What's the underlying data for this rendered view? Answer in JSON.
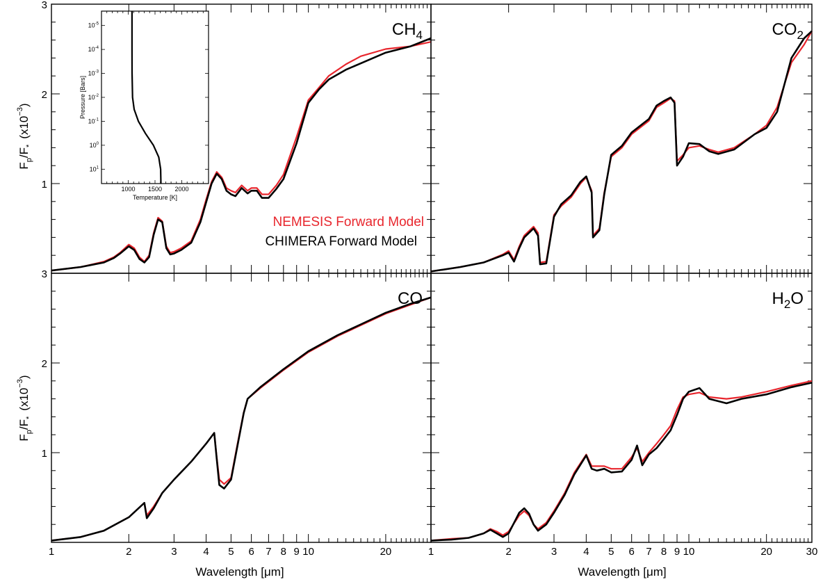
{
  "figure": {
    "xlabel": "Wavelength [μm]",
    "ylabel_main": "F",
    "ylabel_sub_p": "p",
    "ylabel_mid": "/F",
    "ylabel_sub_star": "*",
    "ylabel_scale": "(x10",
    "ylabel_exp": "−3",
    "ylabel_close": ")"
  },
  "legend": {
    "nemesis": "NEMESIS Forward Model",
    "chimera": "CHIMERA Forward Model",
    "nemesis_color": "#e8262d",
    "chimera_color": "#000000"
  },
  "chart_data": [
    {
      "type": "line",
      "panel_label": "CH4",
      "label_main": "CH",
      "label_sub": "4",
      "xscale": "log",
      "xlim": [
        1,
        30
      ],
      "ylim": [
        0,
        3
      ],
      "yticks": [
        "1",
        "2",
        "3"
      ],
      "xticks": [
        "1",
        "2",
        "3",
        "4",
        "5",
        "6",
        "7",
        "8",
        "9",
        "10",
        "20"
      ],
      "x": [
        1.0,
        1.3,
        1.6,
        1.75,
        1.85,
        2.0,
        2.1,
        2.2,
        2.3,
        2.4,
        2.5,
        2.6,
        2.7,
        2.8,
        2.9,
        3.0,
        3.2,
        3.5,
        3.8,
        4.0,
        4.2,
        4.4,
        4.6,
        4.8,
        5.0,
        5.2,
        5.5,
        5.8,
        6.0,
        6.3,
        6.6,
        7.0,
        7.5,
        8.0,
        9.0,
        10.0,
        11.0,
        12.0,
        14.0,
        16.0,
        20.0,
        25.0,
        30.0
      ],
      "series": [
        {
          "name": "NEMESIS Forward Model",
          "color": "#e8262d",
          "values": [
            0.03,
            0.07,
            0.13,
            0.18,
            0.23,
            0.32,
            0.28,
            0.18,
            0.13,
            0.2,
            0.45,
            0.62,
            0.58,
            0.3,
            0.23,
            0.24,
            0.28,
            0.36,
            0.6,
            0.82,
            1.02,
            1.13,
            1.07,
            0.95,
            0.92,
            0.9,
            0.98,
            0.92,
            0.95,
            0.95,
            0.88,
            0.88,
            0.98,
            1.1,
            1.52,
            1.93,
            2.07,
            2.2,
            2.33,
            2.42,
            2.5,
            2.53,
            2.58
          ]
        },
        {
          "name": "CHIMERA Forward Model",
          "color": "#000000",
          "values": [
            0.03,
            0.07,
            0.12,
            0.17,
            0.22,
            0.3,
            0.26,
            0.16,
            0.12,
            0.18,
            0.43,
            0.6,
            0.57,
            0.28,
            0.21,
            0.22,
            0.26,
            0.34,
            0.57,
            0.79,
            1.0,
            1.11,
            1.05,
            0.92,
            0.88,
            0.86,
            0.95,
            0.89,
            0.92,
            0.92,
            0.84,
            0.84,
            0.94,
            1.05,
            1.45,
            1.9,
            2.05,
            2.16,
            2.27,
            2.34,
            2.46,
            2.53,
            2.62
          ]
        }
      ],
      "inset": {
        "type": "line",
        "xlabel": "Temperature [K]",
        "ylabel": "Pressure [Bars]",
        "xticks": [
          "1000",
          "1500",
          "2000"
        ],
        "xlim": [
          500,
          2500
        ],
        "ytick_exponents": [
          "-5",
          "-4",
          "-3",
          "-2",
          "-1",
          "0",
          "1"
        ],
        "yticks_base": "10",
        "temperature": [
          1070,
          1070,
          1072,
          1080,
          1110,
          1190,
          1320,
          1470,
          1570,
          1605,
          1610
        ],
        "log10_pressure": [
          -5.6,
          -4.0,
          -3.0,
          -2.0,
          -1.5,
          -1.0,
          -0.5,
          0.0,
          0.5,
          1.0,
          1.6
        ]
      }
    },
    {
      "type": "line",
      "panel_label": "CO2",
      "label_main": "CO",
      "label_sub": "2",
      "xscale": "log",
      "xlim": [
        1,
        30
      ],
      "ylim": [
        0,
        3
      ],
      "yticks": [
        "1",
        "2",
        "3"
      ],
      "xticks": [
        "1",
        "2",
        "3",
        "4",
        "5",
        "6",
        "7",
        "8",
        "9",
        "10",
        "20",
        "30"
      ],
      "x": [
        1.0,
        1.3,
        1.6,
        1.9,
        2.0,
        2.1,
        2.2,
        2.3,
        2.5,
        2.6,
        2.65,
        2.8,
        3.0,
        3.2,
        3.5,
        3.8,
        4.0,
        4.2,
        4.25,
        4.5,
        4.7,
        5.0,
        5.5,
        6.0,
        7.0,
        7.5,
        8.0,
        8.5,
        8.8,
        9.0,
        9.5,
        10.0,
        11.0,
        12.0,
        13.0,
        15.0,
        18.0,
        20.0,
        22.0,
        25.0,
        28.0,
        30.0
      ],
      "series": [
        {
          "name": "NEMESIS Forward Model",
          "color": "#e8262d",
          "values": [
            0.02,
            0.07,
            0.12,
            0.21,
            0.25,
            0.15,
            0.3,
            0.42,
            0.52,
            0.45,
            0.12,
            0.13,
            0.65,
            0.75,
            0.85,
            1.0,
            1.07,
            0.92,
            0.42,
            0.5,
            0.9,
            1.3,
            1.4,
            1.55,
            1.7,
            1.85,
            1.9,
            1.95,
            1.92,
            1.25,
            1.32,
            1.4,
            1.42,
            1.38,
            1.35,
            1.4,
            1.55,
            1.65,
            1.85,
            2.35,
            2.55,
            2.7
          ]
        },
        {
          "name": "CHIMERA Forward Model",
          "color": "#000000",
          "values": [
            0.02,
            0.07,
            0.12,
            0.2,
            0.23,
            0.13,
            0.28,
            0.4,
            0.5,
            0.42,
            0.1,
            0.11,
            0.63,
            0.77,
            0.87,
            1.02,
            1.08,
            0.9,
            0.4,
            0.48,
            0.88,
            1.32,
            1.42,
            1.57,
            1.72,
            1.87,
            1.92,
            1.96,
            1.9,
            1.2,
            1.3,
            1.45,
            1.44,
            1.36,
            1.33,
            1.38,
            1.55,
            1.62,
            1.8,
            2.4,
            2.62,
            2.7
          ]
        }
      ]
    },
    {
      "type": "line",
      "panel_label": "CO",
      "label_main": "CO",
      "label_sub": "",
      "xscale": "log",
      "xlim": [
        1,
        30
      ],
      "ylim": [
        0,
        3
      ],
      "yticks": [
        "1",
        "2",
        "3"
      ],
      "xticks": [
        "1",
        "2",
        "3",
        "4",
        "5",
        "6",
        "7",
        "8",
        "9",
        "10",
        "20"
      ],
      "x": [
        1.0,
        1.3,
        1.6,
        2.0,
        2.3,
        2.35,
        2.5,
        2.7,
        3.0,
        3.5,
        4.0,
        4.3,
        4.4,
        4.5,
        4.7,
        5.0,
        5.3,
        5.6,
        5.8,
        6.5,
        8.0,
        10.0,
        13.0,
        16.0,
        20.0,
        25.0,
        30.0
      ],
      "series": [
        {
          "name": "NEMESIS Forward Model",
          "color": "#e8262d",
          "values": [
            0.02,
            0.06,
            0.13,
            0.28,
            0.44,
            0.3,
            0.4,
            0.55,
            0.7,
            0.9,
            1.1,
            1.22,
            0.95,
            0.7,
            0.65,
            0.72,
            1.1,
            1.45,
            1.6,
            1.72,
            1.92,
            2.12,
            2.3,
            2.42,
            2.55,
            2.65,
            2.73
          ]
        },
        {
          "name": "CHIMERA Forward Model",
          "color": "#000000",
          "values": [
            0.02,
            0.06,
            0.13,
            0.28,
            0.44,
            0.27,
            0.38,
            0.55,
            0.7,
            0.9,
            1.1,
            1.22,
            0.93,
            0.64,
            0.6,
            0.7,
            1.08,
            1.44,
            1.6,
            1.73,
            1.93,
            2.13,
            2.31,
            2.43,
            2.56,
            2.66,
            2.73
          ]
        }
      ]
    },
    {
      "type": "line",
      "panel_label": "H2O",
      "label_main": "H",
      "label_sub": "2",
      "label_tail": "O",
      "xscale": "log",
      "xlim": [
        1,
        30
      ],
      "ylim": [
        0,
        3
      ],
      "yticks": [],
      "xticks": [
        "1",
        "2",
        "3",
        "4",
        "5",
        "6",
        "7",
        "8",
        "9",
        "10",
        "20",
        "30"
      ],
      "x": [
        1.0,
        1.2,
        1.4,
        1.6,
        1.7,
        1.8,
        1.9,
        2.0,
        2.2,
        2.3,
        2.4,
        2.5,
        2.6,
        2.8,
        3.0,
        3.3,
        3.6,
        4.0,
        4.2,
        4.4,
        4.7,
        5.0,
        5.5,
        6.0,
        6.3,
        6.6,
        7.0,
        7.5,
        8.0,
        8.5,
        9.0,
        9.5,
        10.0,
        11.0,
        12.0,
        14.0,
        16.0,
        20.0,
        25.0,
        30.0
      ],
      "series": [
        {
          "name": "NEMESIS Forward Model",
          "color": "#e8262d",
          "values": [
            0.02,
            0.04,
            0.05,
            0.1,
            0.15,
            0.12,
            0.08,
            0.12,
            0.3,
            0.35,
            0.3,
            0.2,
            0.15,
            0.22,
            0.35,
            0.55,
            0.78,
            0.98,
            0.85,
            0.85,
            0.85,
            0.82,
            0.82,
            0.95,
            1.05,
            0.9,
            1.0,
            1.1,
            1.2,
            1.3,
            1.48,
            1.62,
            1.65,
            1.67,
            1.62,
            1.6,
            1.62,
            1.68,
            1.75,
            1.8
          ]
        },
        {
          "name": "CHIMERA Forward Model",
          "color": "#000000",
          "values": [
            0.02,
            0.03,
            0.05,
            0.1,
            0.14,
            0.1,
            0.06,
            0.1,
            0.33,
            0.38,
            0.32,
            0.2,
            0.13,
            0.2,
            0.33,
            0.53,
            0.76,
            0.97,
            0.82,
            0.8,
            0.82,
            0.78,
            0.79,
            0.92,
            1.08,
            0.86,
            0.98,
            1.05,
            1.15,
            1.25,
            1.42,
            1.6,
            1.68,
            1.72,
            1.6,
            1.55,
            1.6,
            1.65,
            1.73,
            1.78
          ]
        }
      ]
    }
  ]
}
